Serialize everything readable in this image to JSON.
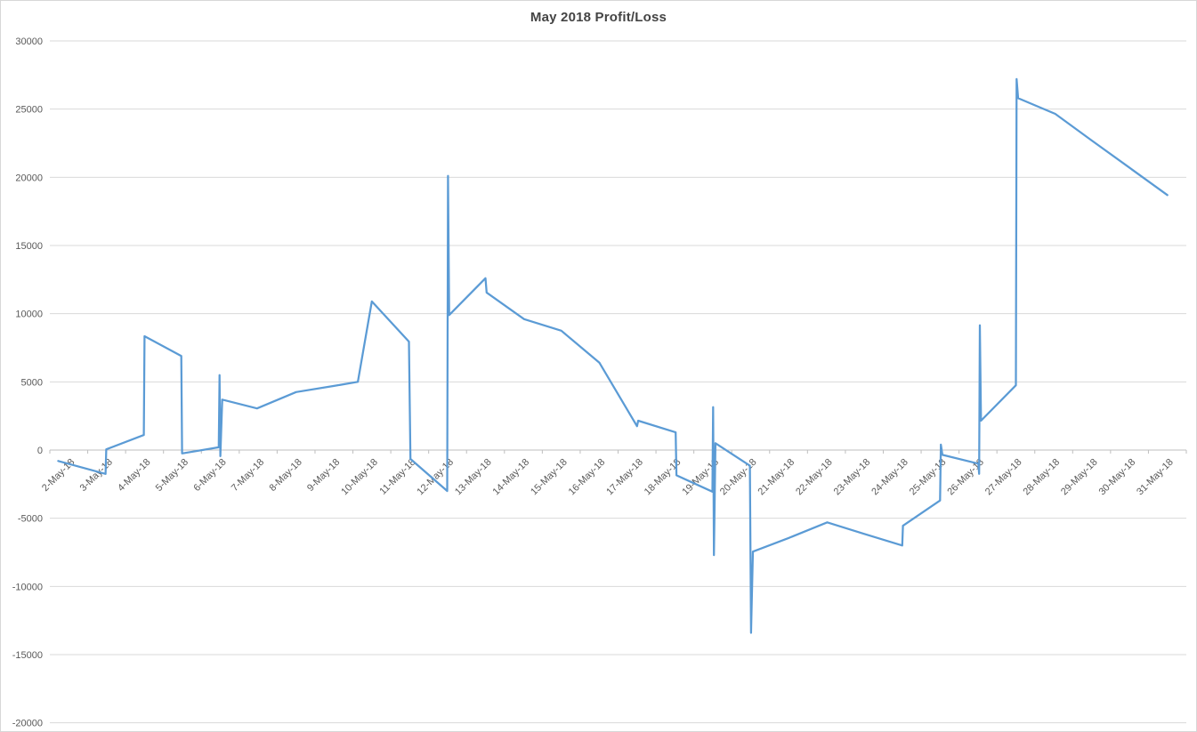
{
  "title": "May 2018 Profit/Loss",
  "colors": {
    "line": "#5B9BD5",
    "grid": "#D9D9D9",
    "axis": "#BFBFBF",
    "text": "#595959",
    "title": "#444444"
  },
  "chart_data": {
    "type": "line",
    "title": "May 2018 Profit/Loss",
    "xlabel": "",
    "ylabel": "",
    "legend": "none",
    "grid": "horizontal",
    "ylim": [
      -20000,
      30000
    ],
    "y_ticks": [
      30000,
      25000,
      20000,
      15000,
      10000,
      5000,
      0,
      -5000,
      -10000,
      -15000,
      -20000
    ],
    "y_tick_labels": [
      "30000",
      "25000",
      "20000",
      "15000",
      "10000",
      "5000",
      "0",
      "-5000",
      "-10000",
      "-15000",
      "-20000"
    ],
    "x_labels": [
      "2-May-18",
      "3-May-18",
      "4-May-18",
      "5-May-18",
      "6-May-18",
      "7-May-18",
      "8-May-18",
      "9-May-18",
      "10-May-18",
      "11-May-18",
      "12-May-18",
      "13-May-18",
      "14-May-18",
      "15-May-18",
      "16-May-18",
      "17-May-18",
      "18-May-18",
      "19-May-18",
      "20-May-18",
      "21-May-18",
      "22-May-18",
      "23-May-18",
      "24-May-18",
      "25-May-18",
      "26-May-18",
      "27-May-18",
      "28-May-18",
      "29-May-18",
      "30-May-18",
      "31-May-18"
    ],
    "series_name": "Profit/Loss",
    "points_note": "x = day of May (fractional position along category axis), y = profit/loss value; multiple trades per day create vertical spikes",
    "points": [
      [
        1.72,
        -800
      ],
      [
        2.97,
        -1750
      ],
      [
        2.99,
        50
      ],
      [
        3.98,
        1100
      ],
      [
        4.0,
        8350
      ],
      [
        4.97,
        6900
      ],
      [
        4.99,
        -250
      ],
      [
        5.96,
        200
      ],
      [
        5.98,
        5500
      ],
      [
        6.0,
        -450
      ],
      [
        6.05,
        3700
      ],
      [
        6.97,
        3050
      ],
      [
        8.0,
        4250
      ],
      [
        9.0,
        4700
      ],
      [
        9.63,
        5000
      ],
      [
        10.0,
        10900
      ],
      [
        10.98,
        7950
      ],
      [
        11.02,
        -650
      ],
      [
        11.99,
        -3000
      ],
      [
        12.01,
        20100
      ],
      [
        12.04,
        9900
      ],
      [
        13.0,
        12600
      ],
      [
        13.03,
        11550
      ],
      [
        14.02,
        9600
      ],
      [
        15.0,
        8750
      ],
      [
        16.01,
        6400
      ],
      [
        17.0,
        1750
      ],
      [
        17.03,
        2150
      ],
      [
        18.02,
        1300
      ],
      [
        18.04,
        -1850
      ],
      [
        18.99,
        -3050
      ],
      [
        19.01,
        3150
      ],
      [
        19.03,
        -7700
      ],
      [
        19.07,
        500
      ],
      [
        19.98,
        -1150
      ],
      [
        20.01,
        -13400
      ],
      [
        20.06,
        -7450
      ],
      [
        21.0,
        -6450
      ],
      [
        22.02,
        -5300
      ],
      [
        23.0,
        -6150
      ],
      [
        24.0,
        -7000
      ],
      [
        24.02,
        -5550
      ],
      [
        25.0,
        -3700
      ],
      [
        25.02,
        400
      ],
      [
        25.06,
        -350
      ],
      [
        26.01,
        -1000
      ],
      [
        26.03,
        -1750
      ],
      [
        26.05,
        9150
      ],
      [
        26.08,
        2150
      ],
      [
        27.0,
        4750
      ],
      [
        27.02,
        27200
      ],
      [
        27.06,
        25800
      ],
      [
        28.04,
        24650
      ],
      [
        29.0,
        22700
      ],
      [
        30.0,
        20700
      ],
      [
        31.0,
        18700
      ]
    ]
  }
}
